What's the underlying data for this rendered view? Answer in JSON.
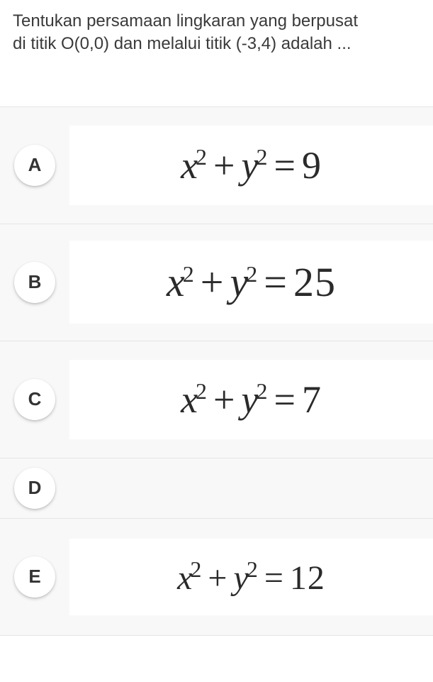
{
  "question": {
    "line1": "Tentukan persamaan lingkaran yang berpusat",
    "line2": "di titik O(0,0) dan melalui titik (-3,4) adalah ..."
  },
  "options": [
    {
      "label": "A",
      "equation": {
        "lhs_x": "x",
        "lhs_y": "y",
        "rhs": "9"
      },
      "has_content": true,
      "font_size": 54
    },
    {
      "label": "B",
      "equation": {
        "lhs_x": "x",
        "lhs_y": "y",
        "rhs": "25"
      },
      "has_content": true,
      "font_size": 58
    },
    {
      "label": "C",
      "equation": {
        "lhs_x": "x",
        "lhs_y": "y",
        "rhs": "7"
      },
      "has_content": true,
      "font_size": 54
    },
    {
      "label": "D",
      "equation": null,
      "has_content": false,
      "font_size": 54
    },
    {
      "label": "E",
      "equation": {
        "lhs_x": "x",
        "lhs_y": "y",
        "rhs": "12"
      },
      "has_content": true,
      "font_size": 48
    }
  ],
  "colors": {
    "background": "#ffffff",
    "row_background": "#f8f8f8",
    "border": "#e5e5e5",
    "text": "#333333",
    "equation_text": "#2a2a2a"
  }
}
